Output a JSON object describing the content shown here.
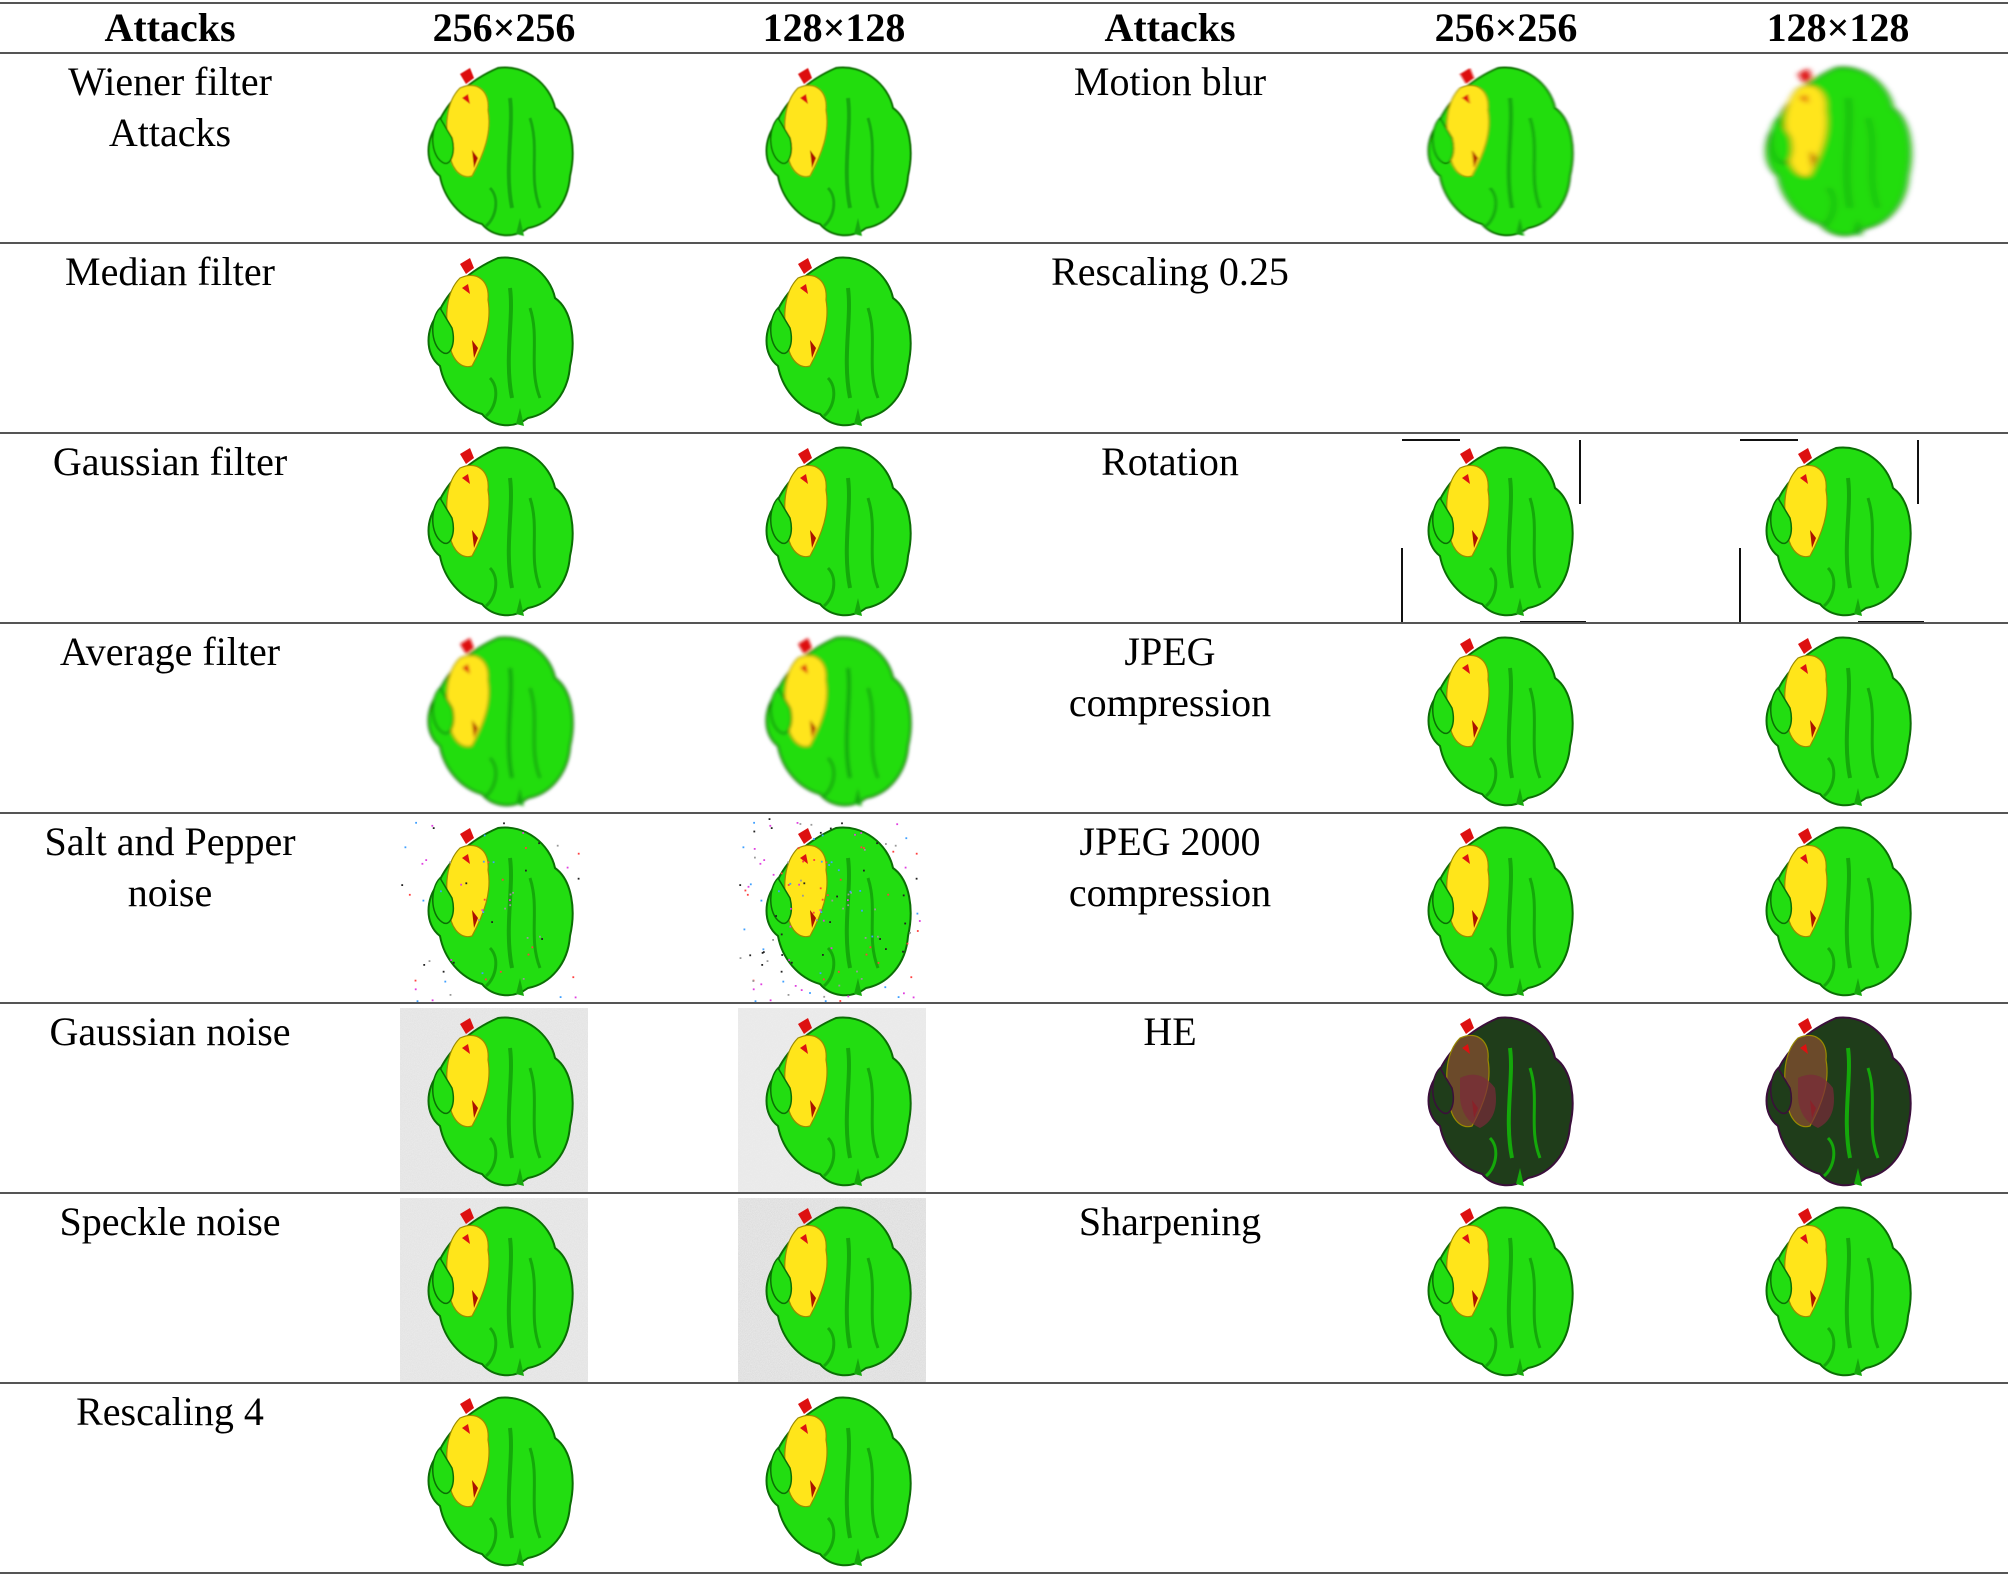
{
  "header": {
    "col1": "Attacks",
    "col2": "256×256",
    "col3": "128×128",
    "col4": "Attacks",
    "col5": "256×256",
    "col6": "128×128"
  },
  "rows": [
    {
      "left": {
        "label_line1": "Wiener filter",
        "label_line2": "Attacks",
        "img256": "wiener",
        "img128": "wiener"
      },
      "right": {
        "label_line1": "Motion blur",
        "label_line2": "",
        "img256": "motion",
        "img128": "motion-heavy"
      }
    },
    {
      "left": {
        "label_line1": "Median filter",
        "label_line2": "",
        "img256": "plain",
        "img128": "plain"
      },
      "right": {
        "label_line1": "Rescaling 0.25",
        "label_line2": "",
        "img256": "pixel-light",
        "img128": "pixel-heavy"
      }
    },
    {
      "left": {
        "label_line1": "Gaussian filter",
        "label_line2": "",
        "img256": "plain",
        "img128": "plain"
      },
      "right": {
        "label_line1": "Rotation",
        "label_line2": "",
        "img256": "rotation",
        "img128": "rotation"
      }
    },
    {
      "left": {
        "label_line1": "Average filter",
        "label_line2": "",
        "img256": "blur",
        "img128": "blur"
      },
      "right": {
        "label_line1": "JPEG",
        "label_line2": "compression",
        "img256": "plain",
        "img128": "plain"
      }
    },
    {
      "left": {
        "label_line1": "Salt and Pepper",
        "label_line2": "noise",
        "img256": "saltpepper",
        "img128": "saltpepper-heavy"
      },
      "right": {
        "label_line1": "JPEG 2000",
        "label_line2": "compression",
        "img256": "plain",
        "img128": "plain"
      }
    },
    {
      "left": {
        "label_line1": "Gaussian noise",
        "label_line2": "",
        "img256": "gnoise",
        "img128": "gnoise-light"
      },
      "right": {
        "label_line1": "HE",
        "label_line2": "",
        "img256": "he",
        "img128": "he"
      }
    },
    {
      "left": {
        "label_line1": "Speckle noise",
        "label_line2": "",
        "img256": "speckle",
        "img128": "speckle-heavy"
      },
      "right": {
        "label_line1": "Sharpening",
        "label_line2": "",
        "img256": "plain",
        "img128": "plain"
      }
    },
    {
      "left": {
        "label_line1": "Rescaling 4",
        "label_line2": "",
        "img256": "plain",
        "img128": "plain"
      },
      "right": null
    }
  ]
}
